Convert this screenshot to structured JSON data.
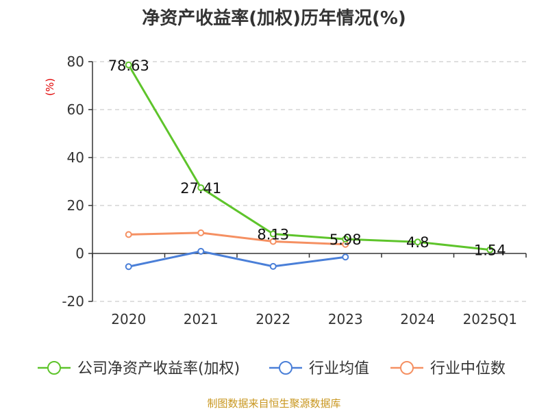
{
  "title": "净资产收益率(加权)历年情况(%)",
  "source": "制图数据来自恒生聚源数据库",
  "chart_data": {
    "type": "line",
    "title": "净资产收益率(加权)历年情况(%)",
    "ylabel": "(%)",
    "xlabel": "",
    "ylim": [
      -20,
      80
    ],
    "yticks": [
      80,
      60,
      40,
      20,
      0,
      -20
    ],
    "grid": true,
    "legend_position": "bottom",
    "categories": [
      "2020",
      "2021",
      "2022",
      "2023",
      "2024",
      "2025Q1"
    ],
    "series": [
      {
        "name": "公司净资产收益率(加权)",
        "color": "#5ec42b",
        "values": [
          78.63,
          27.41,
          8.13,
          5.98,
          4.8,
          1.54
        ],
        "labels": [
          "78.63",
          "27.41",
          "8.13",
          "5.98",
          "4.8",
          "1.54"
        ]
      },
      {
        "name": "行业均值",
        "color": "#4a7fd8",
        "values": [
          -5.5,
          0.9,
          -5.4,
          -1.5,
          null,
          null
        ]
      },
      {
        "name": "行业中位数",
        "color": "#f59062",
        "values": [
          7.9,
          8.6,
          5.0,
          3.8,
          null,
          null
        ]
      }
    ]
  }
}
